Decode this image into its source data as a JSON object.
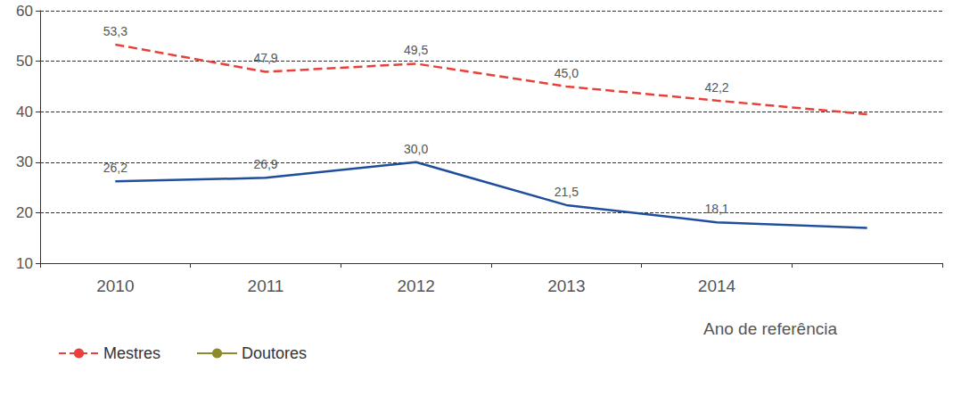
{
  "chart_data": {
    "type": "line",
    "x_label": "Ano de referência",
    "categories": [
      "2010",
      "2011",
      "2012",
      "2013",
      "2014",
      null
    ],
    "series": [
      {
        "color": "#1f4e9c",
        "line_style": "solid",
        "values": [
          26.2,
          26.9,
          30.0,
          21.5,
          18.1,
          17.0
        ],
        "value_labels": [
          "26,2",
          "26,9",
          "30,0",
          "21,5",
          "18,1",
          null
        ]
      },
      {
        "name": "Mestres",
        "color": "#e8413a",
        "line_style": "dashed",
        "values": [
          53.3,
          47.9,
          49.5,
          45.0,
          42.2,
          39.5
        ],
        "value_labels": [
          "53,3",
          "47,9",
          "49,5",
          "45,0",
          "42,2",
          null
        ]
      },
      {
        "name": "Doutores",
        "color": "#8c8a2a",
        "line_style": "solid",
        "values": [
          null,
          null,
          null,
          null,
          null,
          null
        ]
      }
    ],
    "ylim": [
      10,
      60
    ],
    "yticks": [
      10,
      20,
      30,
      40,
      50,
      60
    ],
    "grid": true,
    "data_labels": true,
    "marker": "none",
    "legend": "bottom left"
  }
}
